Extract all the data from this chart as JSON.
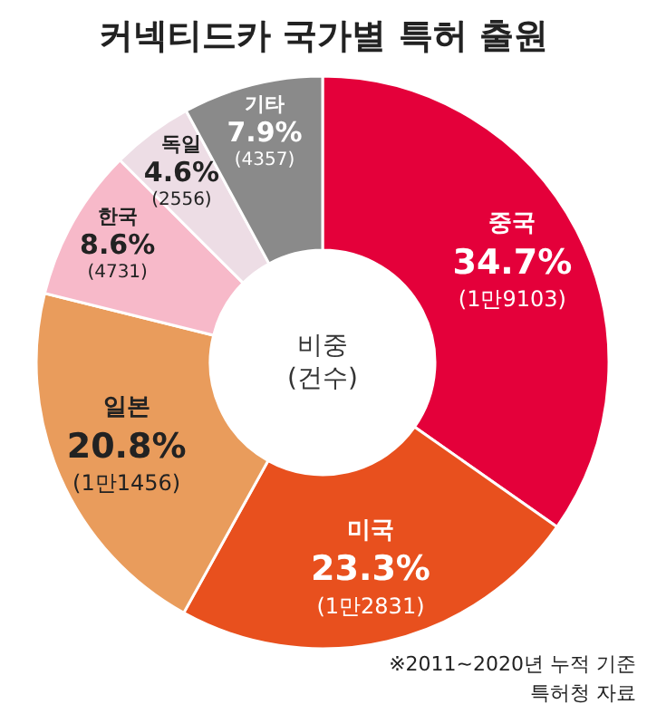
{
  "chart_data": {
    "type": "donut",
    "title": "커넥티드카 국가별 특허 출원",
    "categories": [
      "중국",
      "미국",
      "일본",
      "한국",
      "독일",
      "기타"
    ],
    "values": [
      34.7,
      23.3,
      20.8,
      8.6,
      4.6,
      7.9
    ],
    "value_labels": [
      "34.7%\n(1만9103)",
      "23.3%\n(1만2831)",
      "20.8%\n(1만1456)",
      "8.6%\n(4731)",
      "4.6%\n(2556)",
      "7.9%\n(4357)"
    ],
    "colors": [
      "#e4003a",
      "#e8501e",
      "#e99c5c",
      "#f7b9c9",
      "#eddde5",
      "#8a8a8a"
    ],
    "annotations": [
      "비중\n(건수)",
      "※2011~2020년 누적 기준\n특허청 자료"
    ]
  }
}
